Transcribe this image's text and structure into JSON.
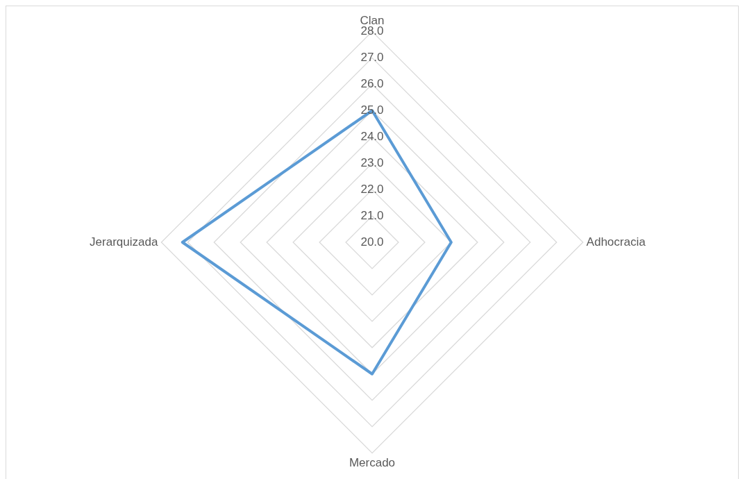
{
  "chart_data": {
    "type": "radar",
    "categories": [
      "Clan",
      "Adhocracia",
      "Mercado",
      "Jerarquizada"
    ],
    "series": [
      {
        "color": "#5b9bd5",
        "values": [
          25.0,
          23.0,
          25.0,
          27.2
        ]
      }
    ],
    "ylim": [
      20,
      28
    ],
    "yticks": [
      {
        "value": 20,
        "label": "20.0"
      },
      {
        "value": 21,
        "label": "21.0"
      },
      {
        "value": 22,
        "label": "22.0"
      },
      {
        "value": 23,
        "label": "23.0"
      },
      {
        "value": 24,
        "label": "24.0"
      },
      {
        "value": 25,
        "label": "25.0"
      },
      {
        "value": 26,
        "label": "26.0"
      },
      {
        "value": 27,
        "label": "27.0"
      },
      {
        "value": 28,
        "label": "28.0"
      }
    ],
    "grid": true,
    "legend": false,
    "marker": "none",
    "line_style": "solid"
  }
}
